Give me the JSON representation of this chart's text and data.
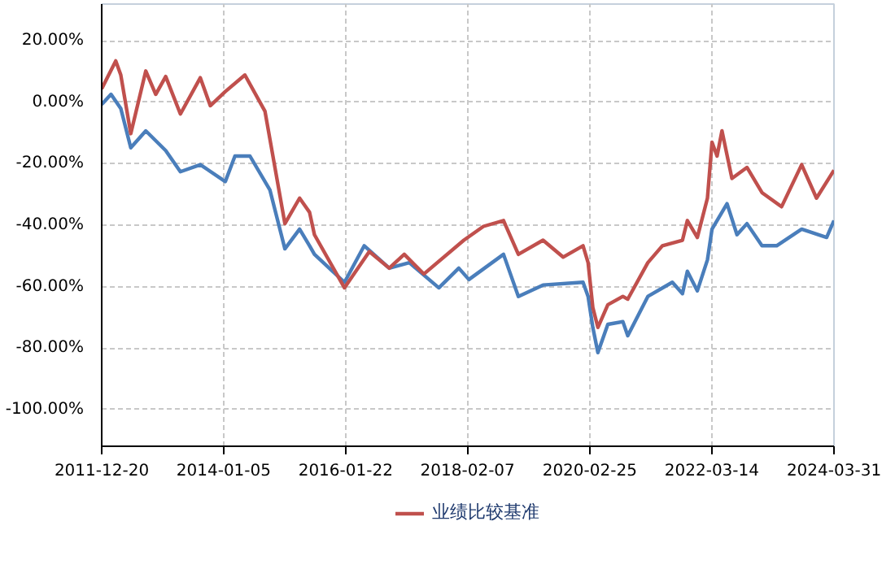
{
  "chart_data": {
    "type": "line",
    "xlim": [
      "2011-12-20",
      "2024-03-31"
    ],
    "xticks": [
      "2011-12-20",
      "2014-01-05",
      "2016-01-22",
      "2018-02-07",
      "2020-02-25",
      "2022-03-14",
      "2024-03-31"
    ],
    "ylim": [
      -112,
      32
    ],
    "yticks": [
      {
        "value": 20,
        "label": "20.00%"
      },
      {
        "value": 0,
        "label": "0.00%"
      },
      {
        "value": -20,
        "label": "-20.00%"
      },
      {
        "value": -40,
        "label": "-40.00%"
      },
      {
        "value": -60,
        "label": "-60.00%"
      },
      {
        "value": -80,
        "label": "-80.00%"
      },
      {
        "value": -100,
        "label": "-100.00%"
      }
    ],
    "grid": true,
    "legend": "bottom",
    "line_style": "solid",
    "series": [
      {
        "color": "#4a7ebb",
        "x": [
          "2011-12-20",
          "2012-02",
          "2012-04",
          "2012-06",
          "2012-09",
          "2013-01",
          "2013-04",
          "2013-08",
          "2014-01",
          "2014-03",
          "2014-06",
          "2014-10",
          "2015-01",
          "2015-04",
          "2015-06",
          "2015-07",
          "2016-01",
          "2016-05",
          "2016-10",
          "2017-02",
          "2017-08",
          "2017-12",
          "2018-02",
          "2018-09",
          "2018-12",
          "2019-05",
          "2020-01",
          "2020-02",
          "2020-03",
          "2020-04",
          "2020-06",
          "2020-09",
          "2020-10",
          "2021-02",
          "2021-07",
          "2021-09",
          "2021-10",
          "2021-12",
          "2022-02",
          "2022-03",
          "2022-06",
          "2022-08",
          "2022-10",
          "2023-01",
          "2023-04",
          "2023-09",
          "2024-02",
          "2024-03-31"
        ],
        "values": [
          -0.7,
          2.6,
          -2,
          -14.8,
          -9.3,
          -15.7,
          -22.6,
          -20.3,
          -25.8,
          -17.5,
          -17.5,
          -28.5,
          -47.7,
          -41.3,
          -46.7,
          -49.5,
          -58.6,
          -46.7,
          -54,
          -52.2,
          -60.4,
          -54,
          -57.7,
          -49.5,
          -63.2,
          -59.5,
          -58.6,
          -63.2,
          -73.3,
          -81.5,
          -72.3,
          -71.4,
          -76,
          -63.2,
          -58.6,
          -62.3,
          -55,
          -61.4,
          -51.3,
          -41.3,
          -33,
          -43.1,
          -39.5,
          -46.7,
          -46.7,
          -41.3,
          -44,
          -38.5
        ]
      },
      {
        "name": "业绩比较基准",
        "color": "#c0504d",
        "x": [
          "2011-12-20",
          "2012-03",
          "2012-04",
          "2012-06",
          "2012-09",
          "2012-11",
          "2013-01",
          "2013-04",
          "2013-08",
          "2013-10",
          "2014-01",
          "2014-05",
          "2014-09",
          "2015-01",
          "2015-04",
          "2015-06",
          "2015-07",
          "2016-01",
          "2016-06",
          "2016-10",
          "2017-01",
          "2017-05",
          "2018-01",
          "2018-05",
          "2018-09",
          "2018-12",
          "2019-05",
          "2019-09",
          "2020-01",
          "2020-02",
          "2020-03",
          "2020-04",
          "2020-06",
          "2020-09",
          "2020-10",
          "2021-02",
          "2021-05",
          "2021-09",
          "2021-10",
          "2021-12",
          "2022-02",
          "2022-03",
          "2022-04",
          "2022-05",
          "2022-07",
          "2022-10",
          "2023-01",
          "2023-05",
          "2023-09",
          "2023-12",
          "2024-03-31"
        ],
        "values": [
          4.4,
          13.5,
          8.9,
          -10.2,
          10.2,
          2.6,
          8.4,
          -3.8,
          8,
          -1.1,
          3.5,
          8.9,
          -2.9,
          -39.5,
          -31.2,
          -35.8,
          -43.1,
          -60.4,
          -48.6,
          -54,
          -49.5,
          -55.9,
          -44.9,
          -40.4,
          -38.5,
          -49.5,
          -44.9,
          -50.4,
          -46.7,
          -52.2,
          -66.8,
          -73.3,
          -65.9,
          -63.2,
          -64.1,
          -52.2,
          -46.7,
          -44.9,
          -38.5,
          -44,
          -31.2,
          -13,
          -17.5,
          -9.3,
          -24.8,
          -21.2,
          -29.4,
          -34,
          -20.3,
          -31.2,
          -22.1
        ]
      }
    ]
  }
}
